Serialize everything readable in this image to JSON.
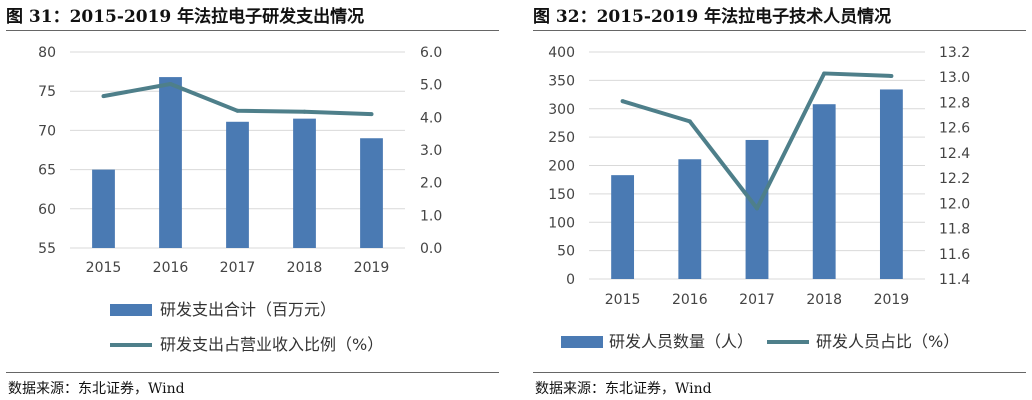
{
  "figures": [
    {
      "title": "图 31：2015-2019 年法拉电子研发支出情况",
      "source": "数据来源：东北证券，Wind"
    },
    {
      "title": "图 32：2015-2019 年法拉电子技术人员情况",
      "source": "数据来源：东北证券，Wind"
    }
  ],
  "chart_data": [
    {
      "type": "bar",
      "title": "",
      "categories": [
        "2015",
        "2016",
        "2017",
        "2018",
        "2019"
      ],
      "series": [
        {
          "name": "研发支出合计（百万元）",
          "type": "bar",
          "axis": "left",
          "values": [
            65.0,
            76.8,
            71.1,
            71.5,
            69.0
          ]
        },
        {
          "name": "研发支出占营业收入比例（%）",
          "type": "line",
          "axis": "right",
          "values": [
            4.65,
            5.02,
            4.2,
            4.17,
            4.1
          ]
        }
      ],
      "y_left": {
        "min": 55,
        "max": 80,
        "step": 5,
        "ticks": [
          "55",
          "60",
          "65",
          "70",
          "75",
          "80"
        ]
      },
      "y_right": {
        "min": 0,
        "max": 6,
        "step": 1,
        "ticks": [
          "0.0",
          "1.0",
          "2.0",
          "3.0",
          "4.0",
          "5.0",
          "6.0"
        ]
      },
      "grid": true,
      "legend": "bottom",
      "colors": {
        "bar": "#4a7ab3",
        "line": "#4e7f8a"
      }
    },
    {
      "type": "bar",
      "title": "",
      "categories": [
        "2015",
        "2016",
        "2017",
        "2018",
        "2019"
      ],
      "series": [
        {
          "name": "研发人员数量（人）",
          "type": "bar",
          "axis": "left",
          "values": [
            183,
            211,
            245,
            308,
            334
          ]
        },
        {
          "name": "研发人员占比（%）",
          "type": "line",
          "axis": "right",
          "values": [
            12.81,
            12.65,
            11.96,
            13.03,
            13.01
          ]
        }
      ],
      "y_left": {
        "min": 0,
        "max": 400,
        "step": 50,
        "ticks": [
          "0",
          "50",
          "100",
          "150",
          "200",
          "250",
          "300",
          "350",
          "400"
        ]
      },
      "y_right": {
        "min": 11.4,
        "max": 13.2,
        "step": 0.2,
        "ticks": [
          "11.4",
          "11.6",
          "11.8",
          "12.0",
          "12.2",
          "12.4",
          "12.6",
          "12.8",
          "13.0",
          "13.2"
        ]
      },
      "grid": true,
      "legend": "bottom",
      "colors": {
        "bar": "#4a7ab3",
        "line": "#4e7f8a"
      }
    }
  ]
}
